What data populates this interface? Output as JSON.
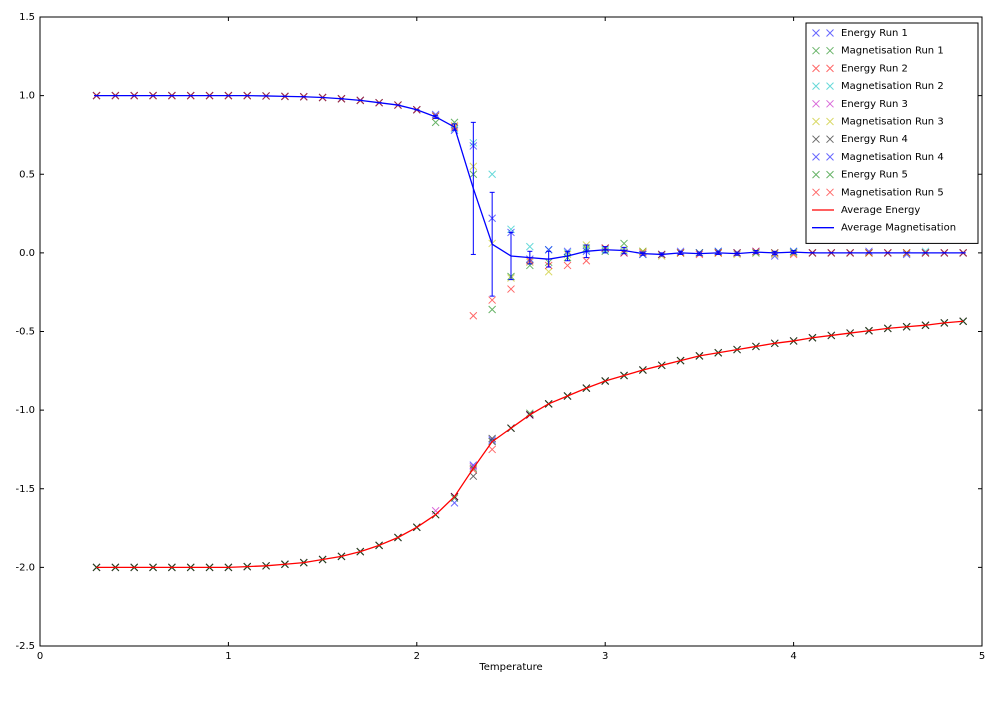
{
  "chart_data": {
    "type": "line",
    "xlabel": "Temperature",
    "x": [
      0.3,
      0.4,
      0.5,
      0.6,
      0.7,
      0.8,
      0.9,
      1.0,
      1.1,
      1.2,
      1.3,
      1.4,
      1.5,
      1.6,
      1.7,
      1.8,
      1.9,
      2.0,
      2.1,
      2.2,
      2.3,
      2.4,
      2.5,
      2.6,
      2.7,
      2.8,
      2.9,
      3.0,
      3.1,
      3.2,
      3.3,
      3.4,
      3.5,
      3.6,
      3.7,
      3.8,
      3.9,
      4.0,
      4.1,
      4.2,
      4.3,
      4.4,
      4.5,
      4.6,
      4.7,
      4.8,
      4.9
    ],
    "xlim": [
      0,
      5
    ],
    "xticks": [
      0,
      1,
      2,
      3,
      4,
      5
    ],
    "ylim": [
      -2.5,
      1.5
    ],
    "yticks": [
      -2.5,
      {
        "value": -2,
        "label": "-2.0"
      },
      -1.5,
      {
        "value": -1,
        "label": "-1.0"
      },
      -0.5,
      {
        "value": 0,
        "label": "0.0"
      },
      0.5,
      {
        "value": 1,
        "label": "1.0"
      },
      1.5
    ],
    "legend": "upper right",
    "series": [
      {
        "name": "Energy Run 1",
        "color": "#0000ff",
        "marker": "x",
        "values": [
          -2,
          -2,
          -2,
          -2,
          -2,
          -2,
          -2,
          -2,
          -1.995,
          -1.99,
          -1.98,
          -1.97,
          -1.95,
          -1.93,
          -1.9,
          -1.86,
          -1.81,
          -1.745,
          -1.665,
          -1.59,
          -1.35,
          -1.19,
          -1.115,
          -1.03,
          -0.96,
          -0.91,
          -0.86,
          -0.815,
          -0.78,
          -0.745,
          -0.715,
          -0.685,
          -0.655,
          -0.635,
          -0.615,
          -0.595,
          -0.575,
          -0.56,
          -0.54,
          -0.525,
          -0.51,
          -0.495,
          -0.48,
          -0.47,
          -0.46,
          -0.445,
          -0.435
        ]
      },
      {
        "name": "Magnetisation Run 1",
        "color": "#008000",
        "marker": "x",
        "values": [
          1,
          1,
          1,
          1,
          1,
          1,
          1,
          1,
          1,
          0.998,
          0.995,
          0.993,
          0.988,
          0.98,
          0.97,
          0.955,
          0.94,
          0.91,
          0.83,
          0.83,
          0.5,
          -0.36,
          -0.15,
          -0.08,
          -0.06,
          -0.03,
          0.03,
          0.01,
          0.06,
          0.01,
          -0.01,
          0,
          0,
          0,
          0,
          0,
          0,
          0,
          0,
          0,
          0,
          0,
          0,
          0,
          0,
          0,
          0
        ]
      },
      {
        "name": "Energy Run 2",
        "color": "#ff0000",
        "marker": "x",
        "values": [
          -2,
          -2,
          -2,
          -2,
          -2,
          -2,
          -2,
          -2,
          -1.995,
          -1.99,
          -1.98,
          -1.97,
          -1.95,
          -1.93,
          -1.9,
          -1.86,
          -1.81,
          -1.745,
          -1.665,
          -1.55,
          -1.38,
          -1.25,
          -1.115,
          -1.03,
          -0.96,
          -0.91,
          -0.86,
          -0.815,
          -0.78,
          -0.745,
          -0.715,
          -0.685,
          -0.655,
          -0.635,
          -0.615,
          -0.595,
          -0.575,
          -0.56,
          -0.54,
          -0.525,
          -0.51,
          -0.495,
          -0.48,
          -0.47,
          -0.46,
          -0.445,
          -0.435
        ]
      },
      {
        "name": "Magnetisation Run 2",
        "color": "#00bfbf",
        "marker": "x",
        "values": [
          1,
          1,
          1,
          1,
          1,
          1,
          1,
          1,
          1,
          0.998,
          0.995,
          0.993,
          0.988,
          0.98,
          0.97,
          0.955,
          0.94,
          0.91,
          0.87,
          0.79,
          0.7,
          0.5,
          0.15,
          0.04,
          0.02,
          0,
          0.02,
          0.02,
          0.01,
          -0.01,
          -0.01,
          0,
          0,
          0.01,
          0,
          0,
          0,
          0.01,
          0,
          0,
          0,
          0,
          0,
          0,
          0.01,
          0,
          0
        ]
      },
      {
        "name": "Energy Run 3",
        "color": "#bf00bf",
        "marker": "x",
        "values": [
          -2,
          -2,
          -2,
          -2,
          -2,
          -2,
          -2,
          -2,
          -1.995,
          -1.99,
          -1.98,
          -1.97,
          -1.95,
          -1.93,
          -1.9,
          -1.86,
          -1.81,
          -1.745,
          -1.64,
          -1.55,
          -1.36,
          -1.2,
          -1.115,
          -1.03,
          -0.96,
          -0.91,
          -0.86,
          -0.815,
          -0.78,
          -0.745,
          -0.715,
          -0.685,
          -0.655,
          -0.635,
          -0.615,
          -0.595,
          -0.575,
          -0.56,
          -0.54,
          -0.525,
          -0.51,
          -0.495,
          -0.48,
          -0.47,
          -0.46,
          -0.445,
          -0.435
        ]
      },
      {
        "name": "Magnetisation Run 3",
        "color": "#bfbf00",
        "marker": "x",
        "values": [
          1,
          1,
          1,
          1,
          1,
          1,
          1,
          1,
          1,
          0.998,
          0.995,
          0.993,
          0.988,
          0.98,
          0.97,
          0.955,
          0.94,
          0.91,
          0.87,
          0.81,
          0.55,
          0.06,
          -0.16,
          -0.06,
          -0.12,
          -0.01,
          0.05,
          0.03,
          0.02,
          0.01,
          -0.02,
          0,
          0,
          0,
          -0.01,
          0,
          -0.01,
          0,
          0,
          0,
          0,
          0,
          0,
          0,
          0,
          0,
          0
        ]
      },
      {
        "name": "Energy Run 4",
        "color": "#000000",
        "marker": "x",
        "values": [
          -2,
          -2,
          -2,
          -2,
          -2,
          -2,
          -2,
          -2,
          -1.995,
          -1.99,
          -1.98,
          -1.97,
          -1.95,
          -1.93,
          -1.9,
          -1.86,
          -1.81,
          -1.745,
          -1.665,
          -1.55,
          -1.42,
          -1.18,
          -1.115,
          -1.03,
          -0.96,
          -0.91,
          -0.86,
          -0.815,
          -0.78,
          -0.745,
          -0.715,
          -0.685,
          -0.655,
          -0.635,
          -0.615,
          -0.595,
          -0.575,
          -0.56,
          -0.54,
          -0.525,
          -0.51,
          -0.495,
          -0.48,
          -0.47,
          -0.46,
          -0.445,
          -0.435
        ]
      },
      {
        "name": "Magnetisation Run 4",
        "color": "#0000ff",
        "marker": "x",
        "values": [
          1,
          1,
          1,
          1,
          1,
          1,
          1,
          1,
          1,
          0.998,
          0.995,
          0.993,
          0.988,
          0.98,
          0.97,
          0.955,
          0.94,
          0.91,
          0.88,
          0.78,
          0.68,
          0.22,
          0.13,
          -0.04,
          0.02,
          0.01,
          0.01,
          0.03,
          0,
          -0.01,
          -0.01,
          0.01,
          0,
          0.01,
          0,
          0.01,
          -0.02,
          0.01,
          0,
          0,
          0,
          0.01,
          0,
          -0.01,
          0,
          0,
          0
        ]
      },
      {
        "name": "Energy Run 5",
        "color": "#008000",
        "marker": "x",
        "values": [
          -2,
          -2,
          -2,
          -2,
          -2,
          -2,
          -2,
          -2,
          -1.995,
          -1.99,
          -1.98,
          -1.97,
          -1.95,
          -1.93,
          -1.9,
          -1.86,
          -1.81,
          -1.745,
          -1.665,
          -1.56,
          -1.37,
          -1.2,
          -1.115,
          -1.02,
          -0.96,
          -0.91,
          -0.86,
          -0.815,
          -0.78,
          -0.745,
          -0.715,
          -0.685,
          -0.655,
          -0.635,
          -0.615,
          -0.595,
          -0.575,
          -0.56,
          -0.54,
          -0.525,
          -0.51,
          -0.495,
          -0.48,
          -0.47,
          -0.46,
          -0.445,
          -0.435
        ]
      },
      {
        "name": "Magnetisation Run 5",
        "color": "#ff0000",
        "marker": "x",
        "values": [
          1,
          1,
          1,
          1,
          1,
          1,
          1,
          1,
          1,
          0.998,
          0.995,
          0.993,
          0.988,
          0.98,
          0.97,
          0.955,
          0.94,
          0.91,
          0.87,
          0.8,
          -0.4,
          -0.3,
          -0.23,
          -0.05,
          -0.08,
          -0.08,
          -0.05,
          0.03,
          0,
          0,
          -0.01,
          0,
          -0.01,
          0,
          0,
          0.01,
          0,
          -0.01,
          0,
          0,
          0,
          0,
          0,
          0,
          0,
          0,
          0
        ]
      },
      {
        "name": "Average Energy",
        "color": "#ff0000",
        "values": [
          -2,
          -2,
          -2,
          -2,
          -2,
          -2,
          -2,
          -2,
          -1.995,
          -1.99,
          -1.98,
          -1.97,
          -1.95,
          -1.93,
          -1.9,
          -1.86,
          -1.81,
          -1.745,
          -1.665,
          -1.55,
          -1.37,
          -1.2,
          -1.115,
          -1.03,
          -0.96,
          -0.91,
          -0.86,
          -0.815,
          -0.78,
          -0.745,
          -0.715,
          -0.685,
          -0.655,
          -0.635,
          -0.615,
          -0.595,
          -0.575,
          -0.56,
          -0.54,
          -0.525,
          -0.51,
          -0.495,
          -0.48,
          -0.47,
          -0.46,
          -0.445,
          -0.435
        ]
      },
      {
        "name": "Average Magnetisation",
        "color": "#0000ff",
        "values": [
          1,
          1,
          1,
          1,
          1,
          1,
          1,
          1,
          1,
          0.998,
          0.995,
          0.993,
          0.988,
          0.98,
          0.97,
          0.955,
          0.94,
          0.91,
          0.865,
          0.8,
          0.41,
          0.055,
          -0.02,
          -0.03,
          -0.04,
          -0.02,
          0.01,
          0.02,
          0.015,
          -0.005,
          -0.01,
          0,
          -0.005,
          0,
          -0.005,
          0.005,
          0,
          0.005,
          0,
          0,
          0,
          0,
          0,
          0,
          0,
          0,
          0
        ],
        "errors": [
          0,
          0,
          0,
          0,
          0,
          0,
          0,
          0,
          0,
          0,
          0,
          0,
          0,
          0,
          0,
          0,
          0,
          0,
          0.01,
          0.02,
          0.42,
          0.33,
          0.15,
          0.04,
          0.05,
          0.03,
          0.04,
          0.02,
          0.02,
          0.01,
          0.01,
          0.01,
          0.01,
          0.01,
          0.01,
          0.01,
          0.01,
          0.01,
          0,
          0,
          0,
          0,
          0,
          0,
          0,
          0,
          0
        ]
      }
    ]
  }
}
